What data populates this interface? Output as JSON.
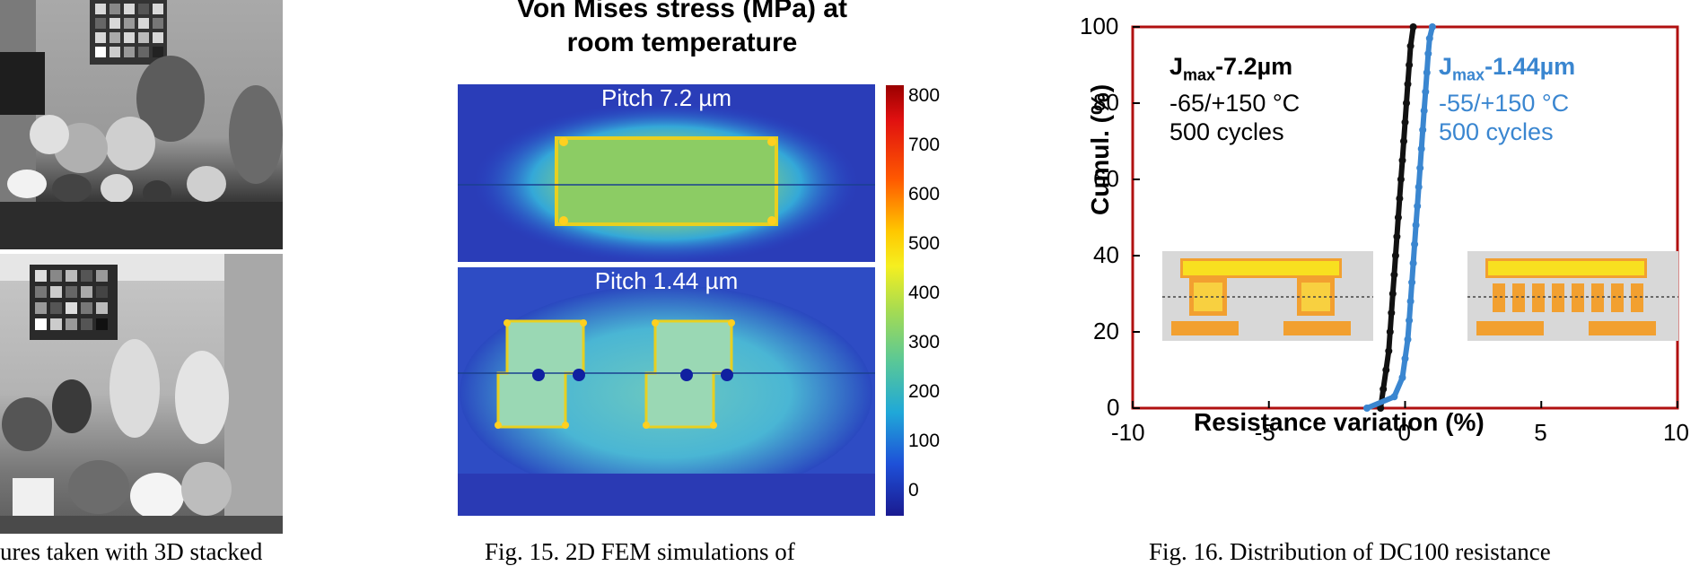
{
  "figure14": {
    "caption": "ures taken with 3D stacked"
  },
  "figure15": {
    "title_line1": "Von Mises stress (MPa) at",
    "title_line2": "room temperature",
    "panel_top_label": "Pitch 7.2 µm",
    "panel_bottom_label": "Pitch 1.44 µm",
    "colorbar_ticks": [
      "800",
      "700",
      "600",
      "500",
      "400",
      "300",
      "200",
      "100",
      "0"
    ],
    "caption": "Fig. 15. 2D FEM simulations of"
  },
  "figure16": {
    "caption": "Fig. 16. Distribution of DC100 resistance",
    "annotation_black": {
      "title_main": "J",
      "title_sub": "max",
      "title_rest": "-7.2µm",
      "line2": "-65/+150 °C",
      "line3": "500 cycles",
      "color": "#111111"
    },
    "annotation_blue": {
      "title_main": "J",
      "title_sub": "max",
      "title_rest": "-1.44µm",
      "line2": "-55/+150 °C",
      "line3": "500 cycles",
      "color": "#3a86d0"
    }
  },
  "chart_data": {
    "type": "scatter",
    "xlabel": "Resistance variation (%)",
    "ylabel": "Cumul. (%)",
    "xlim": [
      -10,
      10
    ],
    "ylim": [
      0,
      100
    ],
    "xticks": [
      -10,
      -5,
      0,
      5,
      10
    ],
    "yticks": [
      0,
      20,
      40,
      60,
      80,
      100
    ],
    "x_tick_labels": [
      "-10",
      "-5",
      "0",
      "5",
      "10"
    ],
    "y_tick_labels": [
      "0",
      "20",
      "40",
      "60",
      "80",
      "100"
    ],
    "series": [
      {
        "name": "Jmax-7.2µm",
        "color": "#111111",
        "points": [
          [
            -0.9,
            0
          ],
          [
            -0.8,
            5
          ],
          [
            -0.7,
            10
          ],
          [
            -0.6,
            15
          ],
          [
            -0.55,
            20
          ],
          [
            -0.5,
            25
          ],
          [
            -0.45,
            30
          ],
          [
            -0.4,
            35
          ],
          [
            -0.35,
            40
          ],
          [
            -0.3,
            45
          ],
          [
            -0.25,
            50
          ],
          [
            -0.2,
            55
          ],
          [
            -0.15,
            60
          ],
          [
            -0.1,
            65
          ],
          [
            -0.05,
            70
          ],
          [
            0.0,
            75
          ],
          [
            0.05,
            80
          ],
          [
            0.1,
            85
          ],
          [
            0.15,
            90
          ],
          [
            0.2,
            95
          ],
          [
            0.3,
            100
          ]
        ]
      },
      {
        "name": "Jmax-1.44µm",
        "color": "#3a86d0",
        "points": [
          [
            -1.4,
            0
          ],
          [
            -0.4,
            3
          ],
          [
            -0.1,
            8
          ],
          [
            0.0,
            13
          ],
          [
            0.1,
            18
          ],
          [
            0.15,
            23
          ],
          [
            0.2,
            28
          ],
          [
            0.25,
            33
          ],
          [
            0.3,
            38
          ],
          [
            0.35,
            43
          ],
          [
            0.4,
            48
          ],
          [
            0.45,
            53
          ],
          [
            0.5,
            58
          ],
          [
            0.55,
            63
          ],
          [
            0.6,
            68
          ],
          [
            0.65,
            73
          ],
          [
            0.7,
            78
          ],
          [
            0.75,
            83
          ],
          [
            0.8,
            88
          ],
          [
            0.85,
            93
          ],
          [
            0.9,
            97
          ],
          [
            1.0,
            100
          ]
        ]
      }
    ]
  }
}
